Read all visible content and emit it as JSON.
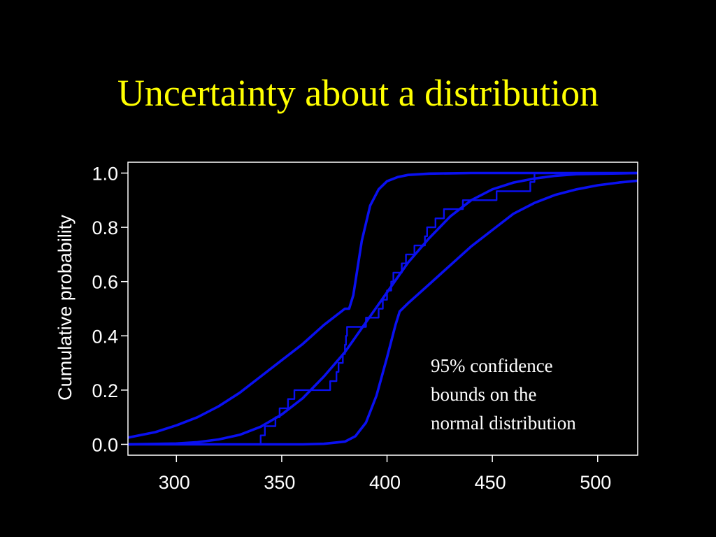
{
  "slide": {
    "title": "Uncertainty about a distribution"
  },
  "colors": {
    "background": "#000000",
    "title": "#ffff00",
    "curve": "#0a10f0",
    "axis": "#ffffff",
    "text": "#ffffff"
  },
  "chart_data": {
    "type": "line",
    "title": "",
    "xlabel": "",
    "ylabel": "Cumulative probability",
    "xlim": [
      277,
      519
    ],
    "ylim": [
      -0.04,
      1.04
    ],
    "x_ticks": [
      300,
      350,
      400,
      450,
      500
    ],
    "y_ticks": [
      0.0,
      0.2,
      0.4,
      0.6,
      0.8,
      1.0
    ],
    "x_tick_labels": [
      "300",
      "350",
      "400",
      "450",
      "500"
    ],
    "y_tick_labels": [
      "0.0",
      "0.2",
      "0.4",
      "0.6",
      "0.8",
      "1.0"
    ],
    "grid": false,
    "annotation": [
      "95% confidence",
      "bounds on the",
      "normal distribution"
    ],
    "series": [
      {
        "kind": "bound",
        "points": [
          [
            277,
            0.025
          ],
          [
            290,
            0.045
          ],
          [
            300,
            0.07
          ],
          [
            310,
            0.1
          ],
          [
            320,
            0.14
          ],
          [
            330,
            0.19
          ],
          [
            340,
            0.25
          ],
          [
            350,
            0.31
          ],
          [
            360,
            0.37
          ],
          [
            370,
            0.44
          ],
          [
            380,
            0.5
          ],
          [
            382,
            0.5
          ],
          [
            384,
            0.55
          ],
          [
            388,
            0.75
          ],
          [
            392,
            0.88
          ],
          [
            396,
            0.94
          ],
          [
            400,
            0.97
          ],
          [
            405,
            0.985
          ],
          [
            410,
            0.993
          ],
          [
            420,
            0.998
          ],
          [
            440,
            1.0
          ],
          [
            519,
            1.0
          ]
        ]
      },
      {
        "kind": "fit",
        "points": [
          [
            277,
            0.0
          ],
          [
            300,
            0.003
          ],
          [
            310,
            0.008
          ],
          [
            320,
            0.018
          ],
          [
            330,
            0.035
          ],
          [
            340,
            0.065
          ],
          [
            350,
            0.11
          ],
          [
            360,
            0.17
          ],
          [
            370,
            0.25
          ],
          [
            380,
            0.34
          ],
          [
            390,
            0.45
          ],
          [
            400,
            0.56
          ],
          [
            410,
            0.67
          ],
          [
            420,
            0.76
          ],
          [
            430,
            0.84
          ],
          [
            440,
            0.9
          ],
          [
            450,
            0.94
          ],
          [
            460,
            0.965
          ],
          [
            470,
            0.98
          ],
          [
            480,
            0.99
          ],
          [
            490,
            0.996
          ],
          [
            519,
            1.0
          ]
        ]
      },
      {
        "kind": "bound",
        "points": [
          [
            277,
            0.0
          ],
          [
            340,
            0.0
          ],
          [
            360,
            0.0
          ],
          [
            370,
            0.002
          ],
          [
            380,
            0.01
          ],
          [
            385,
            0.03
          ],
          [
            390,
            0.08
          ],
          [
            395,
            0.18
          ],
          [
            400,
            0.32
          ],
          [
            404,
            0.44
          ],
          [
            406,
            0.49
          ],
          [
            410,
            0.52
          ],
          [
            420,
            0.59
          ],
          [
            430,
            0.66
          ],
          [
            440,
            0.73
          ],
          [
            450,
            0.79
          ],
          [
            460,
            0.85
          ],
          [
            470,
            0.89
          ],
          [
            480,
            0.92
          ],
          [
            490,
            0.94
          ],
          [
            500,
            0.955
          ],
          [
            510,
            0.965
          ],
          [
            519,
            0.972
          ]
        ]
      },
      {
        "kind": "empirical",
        "step": true,
        "points": [
          [
            277,
            0.0
          ],
          [
            340,
            0.0
          ],
          [
            340,
            0.033
          ],
          [
            342,
            0.033
          ],
          [
            342,
            0.067
          ],
          [
            347,
            0.067
          ],
          [
            347,
            0.1
          ],
          [
            349,
            0.1
          ],
          [
            349,
            0.133
          ],
          [
            353,
            0.133
          ],
          [
            353,
            0.167
          ],
          [
            356,
            0.167
          ],
          [
            356,
            0.2
          ],
          [
            373,
            0.2
          ],
          [
            373,
            0.233
          ],
          [
            376,
            0.233
          ],
          [
            376,
            0.267
          ],
          [
            377,
            0.267
          ],
          [
            377,
            0.3
          ],
          [
            379,
            0.3
          ],
          [
            379,
            0.333
          ],
          [
            380,
            0.333
          ],
          [
            380,
            0.367
          ],
          [
            380.5,
            0.367
          ],
          [
            380.5,
            0.4
          ],
          [
            381,
            0.4
          ],
          [
            381,
            0.433
          ],
          [
            390,
            0.433
          ],
          [
            390,
            0.467
          ],
          [
            396,
            0.467
          ],
          [
            396,
            0.5
          ],
          [
            398,
            0.5
          ],
          [
            398,
            0.533
          ],
          [
            400,
            0.533
          ],
          [
            400,
            0.567
          ],
          [
            402,
            0.567
          ],
          [
            402,
            0.6
          ],
          [
            403,
            0.6
          ],
          [
            403,
            0.633
          ],
          [
            407,
            0.633
          ],
          [
            407,
            0.667
          ],
          [
            409,
            0.667
          ],
          [
            409,
            0.7
          ],
          [
            413,
            0.7
          ],
          [
            413,
            0.733
          ],
          [
            418,
            0.733
          ],
          [
            418,
            0.767
          ],
          [
            419,
            0.767
          ],
          [
            419,
            0.8
          ],
          [
            423,
            0.8
          ],
          [
            423,
            0.833
          ],
          [
            427,
            0.833
          ],
          [
            427,
            0.867
          ],
          [
            436,
            0.867
          ],
          [
            436,
            0.9
          ],
          [
            452,
            0.9
          ],
          [
            452,
            0.933
          ],
          [
            468,
            0.933
          ],
          [
            468,
            0.967
          ],
          [
            470,
            0.967
          ],
          [
            470,
            1.0
          ],
          [
            519,
            1.0
          ]
        ]
      }
    ]
  }
}
